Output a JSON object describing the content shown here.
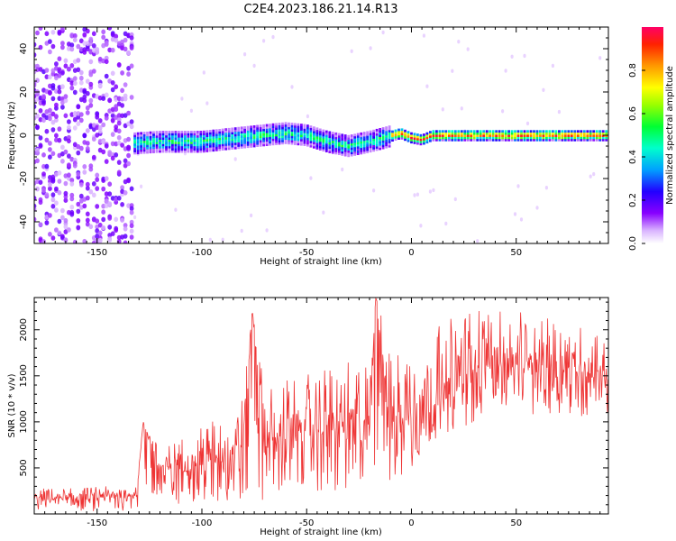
{
  "figure_title": "C2E4.2023.186.21.14.R13",
  "colors": {
    "snr_line": "#ee3333",
    "frame": "#000000",
    "background": "#ffffff"
  },
  "chart_data": [
    {
      "type": "heatmap",
      "xlabel": "Height of straight line (km)",
      "ylabel": "Frequency (Hz)",
      "xlim": [
        -180,
        94
      ],
      "ylim": [
        -50,
        50
      ],
      "xticks": [
        -150,
        -100,
        -50,
        0,
        50
      ],
      "xticklabels": [
        "-150",
        "-100",
        "-50",
        "0",
        "50"
      ],
      "yticks": [
        -40,
        -20,
        0,
        20,
        40
      ],
      "yticklabels": [
        "-40",
        "-20",
        "0",
        "20",
        "40"
      ],
      "colormap": "rainbow (white-violet-blue-cyan-green-yellow-orange-red)",
      "description_of_content": "broad noisy scatter for heights below about -135 km; a narrow ridge near 0 Hz from about -135 km to 94 km, dipping to about -5 Hz around -30 km and strongest (red) above 0 km",
      "ridge_centre": {
        "x": [
          -135,
          -120,
          -100,
          -80,
          -70,
          -60,
          -50,
          -40,
          -30,
          -20,
          -12,
          -5,
          0,
          5,
          10,
          20,
          50,
          94
        ],
        "y": [
          -4,
          -3,
          -3,
          -1,
          0,
          1,
          0,
          -3,
          -5,
          -3,
          -1,
          1,
          -1,
          -2,
          0,
          0,
          0,
          0
        ]
      },
      "colorbar": {
        "label": "Normalized spectral amplitude",
        "range": [
          0,
          1
        ],
        "ticks": [
          0.0,
          0.2,
          0.4,
          0.6,
          0.8
        ],
        "ticklabels": [
          "0.0",
          "0.2",
          "0.4",
          "0.6",
          "0.8"
        ]
      }
    },
    {
      "type": "line",
      "xlabel": "Height of straight line (km)",
      "ylabel": "SNR (10 * v/v)",
      "xlim": [
        -180,
        94
      ],
      "ylim": [
        0,
        2350
      ],
      "xticks": [
        -150,
        -100,
        -50,
        0,
        50
      ],
      "xticklabels": [
        "-150",
        "-100",
        "-50",
        "0",
        "50"
      ],
      "yticks": [
        500,
        1000,
        1500,
        2000
      ],
      "yticklabels": [
        "500",
        "1000",
        "1500",
        "2000"
      ],
      "grid": false,
      "series": [
        {
          "x": [
            -180,
            -170,
            -160,
            -150,
            -140,
            -131,
            -128,
            -120,
            -110,
            -100,
            -90,
            -80,
            -76,
            -70,
            -60,
            -50,
            -40,
            -30,
            -20,
            -17,
            -10,
            -5,
            0,
            10,
            20,
            30,
            40,
            50,
            60,
            70,
            80,
            94
          ],
          "y": [
            150,
            150,
            150,
            160,
            170,
            200,
            1000,
            400,
            450,
            500,
            550,
            650,
            2200,
            700,
            750,
            800,
            850,
            800,
            800,
            2350,
            850,
            900,
            950,
            1150,
            1300,
            1500,
            1600,
            1550,
            1500,
            1550,
            1500,
            1450
          ],
          "envelope_low": [
            30,
            30,
            30,
            30,
            30,
            40,
            80,
            80,
            100,
            100,
            100,
            150,
            150,
            150,
            200,
            200,
            200,
            200,
            200,
            200,
            300,
            350,
            500,
            800,
            900,
            1000,
            1100,
            1150,
            1050,
            1100,
            1050,
            900
          ],
          "envelope_high": [
            280,
            280,
            280,
            300,
            300,
            320,
            1000,
            700,
            850,
            950,
            1100,
            1300,
            2200,
            1350,
            1500,
            1550,
            1600,
            1650,
            1700,
            2350,
            1800,
            1850,
            1950,
            2000,
            2150,
            2250,
            2250,
            2200,
            2150,
            2100,
            2050,
            2000
          ]
        }
      ]
    }
  ]
}
